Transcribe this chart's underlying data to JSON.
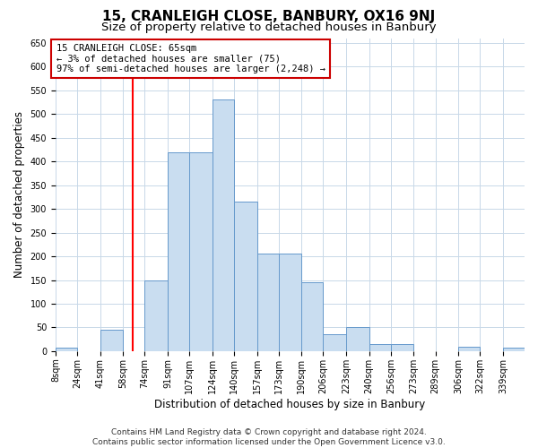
{
  "title": "15, CRANLEIGH CLOSE, BANBURY, OX16 9NJ",
  "subtitle": "Size of property relative to detached houses in Banbury",
  "xlabel": "Distribution of detached houses by size in Banbury",
  "ylabel": "Number of detached properties",
  "bar_labels": [
    "8sqm",
    "24sqm",
    "41sqm",
    "58sqm",
    "74sqm",
    "91sqm",
    "107sqm",
    "124sqm",
    "140sqm",
    "157sqm",
    "173sqm",
    "190sqm",
    "206sqm",
    "223sqm",
    "240sqm",
    "256sqm",
    "273sqm",
    "289sqm",
    "306sqm",
    "322sqm",
    "339sqm"
  ],
  "bar_values": [
    8,
    0,
    45,
    0,
    150,
    420,
    420,
    530,
    315,
    205,
    205,
    145,
    35,
    50,
    15,
    15,
    0,
    0,
    10,
    0,
    8
  ],
  "bar_color": "#c9ddf0",
  "bar_edge_color": "#6699cc",
  "bin_edges": [
    8,
    24,
    41,
    58,
    74,
    91,
    107,
    124,
    140,
    157,
    173,
    190,
    206,
    223,
    240,
    256,
    273,
    289,
    306,
    322,
    339,
    355
  ],
  "red_line_x": 65,
  "ylim": [
    0,
    660
  ],
  "yticks": [
    0,
    50,
    100,
    150,
    200,
    250,
    300,
    350,
    400,
    450,
    500,
    550,
    600,
    650
  ],
  "annotation_title": "15 CRANLEIGH CLOSE: 65sqm",
  "annotation_line1": "← 3% of detached houses are smaller (75)",
  "annotation_line2": "97% of semi-detached houses are larger (2,248) →",
  "annotation_box_color": "#ffffff",
  "annotation_box_edge": "#cc0000",
  "footer_line1": "Contains HM Land Registry data © Crown copyright and database right 2024.",
  "footer_line2": "Contains public sector information licensed under the Open Government Licence v3.0.",
  "bg_color": "#ffffff",
  "grid_color": "#c8d8e8",
  "title_fontsize": 11,
  "subtitle_fontsize": 9.5,
  "axis_label_fontsize": 8.5,
  "tick_fontsize": 7,
  "annot_fontsize": 7.5,
  "footer_fontsize": 6.5
}
